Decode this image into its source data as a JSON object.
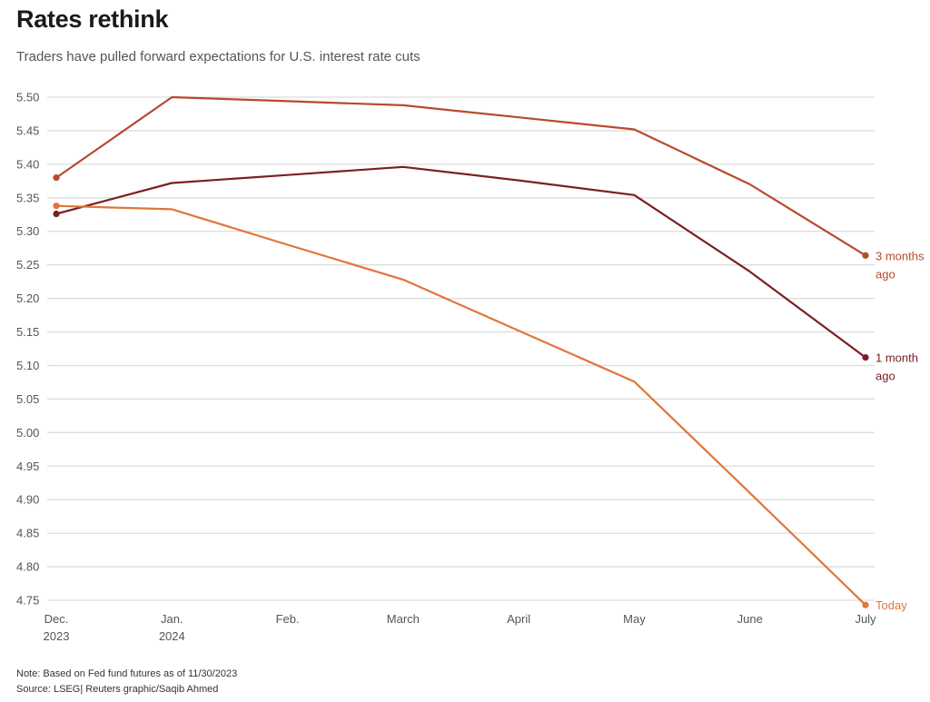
{
  "header": {
    "title": "Rates rethink",
    "subtitle": "Traders have pulled forward expectations for U.S. interest rate cuts"
  },
  "footer": {
    "note": "Note: Based on Fed fund futures as of 11/30/2023",
    "source": "Source: LSEG| Reuters graphic/Saqib Ahmed"
  },
  "chart_data": {
    "type": "line",
    "title": "Rates rethink",
    "subtitle": "Traders have pulled forward expectations for U.S. interest rate cuts",
    "xlabel": "",
    "ylabel": "",
    "ylim": [
      4.75,
      5.5
    ],
    "yticks": [
      "5.50",
      "5.45",
      "5.40",
      "5.35",
      "5.30",
      "5.25",
      "5.20",
      "5.15",
      "5.10",
      "5.05",
      "5.00",
      "4.95",
      "4.90",
      "4.85",
      "4.80",
      "4.75"
    ],
    "categories": [
      [
        "Dec.",
        "2023"
      ],
      [
        "Jan.",
        "2024"
      ],
      [
        "Feb."
      ],
      [
        "March"
      ],
      [
        "April"
      ],
      [
        "May"
      ],
      [
        "June"
      ],
      [
        "July"
      ]
    ],
    "grid": true,
    "legend": "direct labels at line ends",
    "series": [
      {
        "name": "3 months ago",
        "label_lines": [
          "3 months",
          "ago"
        ],
        "color": "#b84a2a",
        "values": [
          5.38,
          5.5,
          5.494,
          5.488,
          5.47,
          5.452,
          5.37,
          5.264
        ]
      },
      {
        "name": "1 month ago",
        "label_lines": [
          "1 month",
          "ago"
        ],
        "color": "#7a2024",
        "values": [
          5.326,
          5.372,
          5.384,
          5.396,
          5.376,
          5.354,
          5.24,
          5.112
        ]
      },
      {
        "name": "Today",
        "label_lines": [
          "Today"
        ],
        "color": "#e0763a",
        "values": [
          5.338,
          5.333,
          5.28,
          5.228,
          5.152,
          5.076,
          4.91,
          4.743
        ]
      }
    ]
  }
}
